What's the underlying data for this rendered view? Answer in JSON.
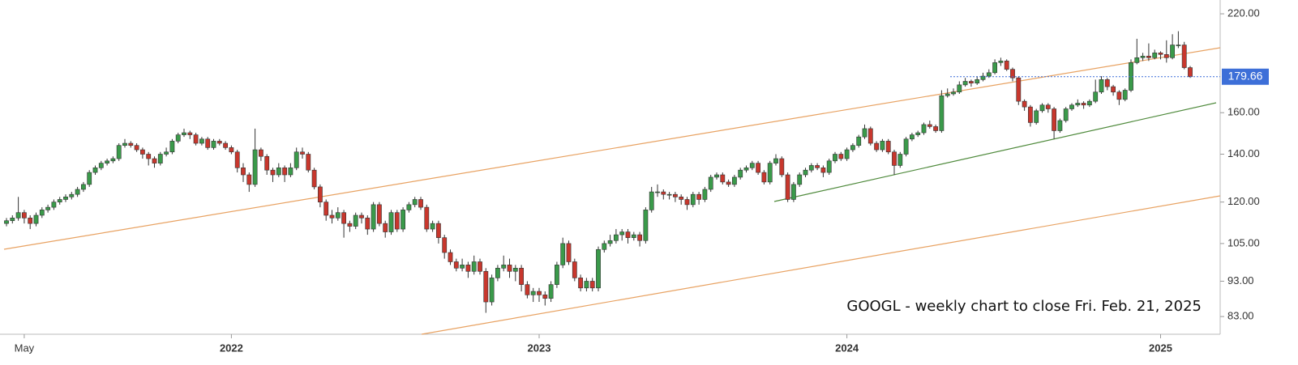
{
  "chart_data": {
    "type": "candlestick",
    "annotation": "GOOGL - weekly chart to close Fri. Feb. 21, 2025",
    "log_y": true,
    "y_axis_side": "right",
    "up_color": "#3a9a4a",
    "down_color": "#c8372d",
    "last_price": 179.66,
    "last_price_color": "#3d6fd8",
    "ylim": [
      78.4,
      230
    ],
    "yticks": [
      {
        "value": 220,
        "label": "220.00"
      },
      {
        "value": 160,
        "label": "160.00"
      },
      {
        "value": 140,
        "label": "140.00"
      },
      {
        "value": 120,
        "label": "120.00"
      },
      {
        "value": 105,
        "label": "105.00"
      },
      {
        "value": 93,
        "label": "93.00"
      },
      {
        "value": 83,
        "label": "83.00"
      }
    ],
    "categories": [
      null,
      null,
      null,
      "May",
      null,
      null,
      null,
      null,
      null,
      null,
      null,
      null,
      null,
      null,
      null,
      null,
      null,
      null,
      null,
      null,
      null,
      null,
      null,
      null,
      null,
      null,
      null,
      null,
      null,
      null,
      null,
      null,
      null,
      null,
      null,
      null,
      null,
      null,
      "2022",
      null,
      null,
      null,
      null,
      null,
      null,
      null,
      null,
      null,
      null,
      null,
      null,
      null,
      null,
      null,
      null,
      null,
      null,
      null,
      null,
      null,
      null,
      null,
      null,
      null,
      null,
      null,
      null,
      null,
      null,
      null,
      null,
      null,
      null,
      null,
      null,
      null,
      null,
      null,
      null,
      null,
      null,
      null,
      null,
      null,
      null,
      null,
      null,
      null,
      null,
      null,
      "2023",
      null,
      null,
      null,
      null,
      null,
      null,
      null,
      null,
      null,
      null,
      null,
      null,
      null,
      null,
      null,
      null,
      null,
      null,
      null,
      null,
      null,
      null,
      null,
      null,
      null,
      null,
      null,
      null,
      null,
      null,
      null,
      null,
      null,
      null,
      null,
      null,
      null,
      null,
      null,
      null,
      null,
      null,
      null,
      null,
      null,
      null,
      null,
      null,
      null,
      null,
      null,
      "2024",
      null,
      null,
      null,
      null,
      null,
      null,
      null,
      null,
      null,
      null,
      null,
      null,
      null,
      null,
      null,
      null,
      null,
      null,
      null,
      null,
      null,
      null,
      null,
      null,
      null,
      null,
      null,
      null,
      null,
      null,
      null,
      null,
      null,
      null,
      null,
      null,
      null,
      null,
      null,
      null,
      null,
      null,
      null,
      null,
      null,
      null,
      null,
      null,
      null,
      null,
      null,
      null,
      "2025",
      null,
      null,
      null,
      null,
      null
    ],
    "open": [
      112,
      113,
      114,
      116,
      114,
      112,
      115,
      117,
      118,
      120,
      121,
      122,
      123,
      125,
      127,
      132,
      134,
      136,
      137,
      138,
      144,
      145,
      144,
      142,
      140,
      138,
      136,
      140,
      141,
      146,
      149,
      150,
      149,
      145,
      147,
      143,
      146,
      145,
      143,
      141,
      134,
      131,
      127,
      142,
      139,
      133,
      131,
      134,
      131,
      134,
      141,
      140,
      133,
      126,
      120,
      115,
      114,
      116,
      112,
      111,
      115,
      114,
      110,
      119,
      112,
      109,
      116,
      110,
      117,
      119,
      121,
      118,
      110,
      112,
      107,
      102,
      99,
      97,
      98,
      96,
      99,
      96,
      87,
      94,
      97,
      98,
      96,
      97,
      92,
      89,
      90,
      89,
      88,
      92,
      98,
      105,
      99,
      94,
      91,
      93,
      91,
      103,
      105,
      106,
      108,
      109,
      107,
      108,
      106,
      117,
      124,
      124,
      123,
      123,
      122,
      121,
      119,
      123,
      121,
      125,
      130,
      131,
      128,
      127,
      130,
      133,
      134,
      136,
      132,
      128,
      136,
      138,
      131,
      121,
      127,
      131,
      133,
      135,
      134,
      132,
      137,
      140,
      138,
      142,
      144,
      148,
      152,
      145,
      142,
      146,
      141,
      135,
      140,
      147,
      149,
      150,
      154,
      153,
      151,
      169,
      170,
      171,
      175,
      177,
      176,
      178,
      180,
      182,
      188,
      189,
      184,
      179,
      166,
      163,
      155,
      161,
      164,
      162,
      151,
      156,
      162,
      164,
      165,
      164,
      166,
      171,
      178,
      174,
      171,
      167,
      172,
      188,
      191,
      192,
      191,
      194,
      193,
      191,
      199,
      199,
      185
    ],
    "high": [
      114,
      115,
      122,
      117,
      115,
      116,
      118,
      119,
      121,
      122,
      123,
      124,
      126,
      128,
      133,
      135,
      137,
      138,
      139,
      145,
      147,
      146,
      145,
      143,
      141,
      139,
      141,
      143,
      147,
      150,
      152,
      151,
      150,
      148,
      148,
      147,
      147,
      146,
      144,
      142,
      136,
      132,
      152,
      143,
      140,
      134,
      136,
      135,
      136,
      143,
      143,
      141,
      134,
      127,
      121,
      117,
      118,
      117,
      113,
      116,
      116,
      115,
      120,
      120,
      113,
      117,
      117,
      118,
      120,
      122,
      122,
      119,
      113,
      113,
      108,
      103,
      100,
      100,
      99,
      101,
      100,
      97,
      95,
      98,
      101,
      100,
      98,
      98,
      93,
      91,
      91,
      90,
      93,
      99,
      107,
      106,
      100,
      95,
      94,
      94,
      104,
      106,
      108,
      110,
      110,
      110,
      109,
      109,
      118,
      126,
      127,
      125,
      124,
      124,
      123,
      122,
      124,
      124,
      126,
      131,
      132,
      132,
      129,
      131,
      134,
      135,
      137,
      137,
      133,
      137,
      140,
      139,
      132,
      128,
      132,
      134,
      136,
      136,
      135,
      138,
      141,
      141,
      143,
      145,
      149,
      154,
      153,
      146,
      147,
      147,
      142,
      141,
      148,
      150,
      151,
      155,
      156,
      154,
      172,
      173,
      173,
      177,
      179,
      178,
      180,
      182,
      184,
      190,
      191,
      190,
      185,
      180,
      167,
      164,
      162,
      165,
      165,
      163,
      157,
      163,
      165,
      167,
      166,
      167,
      178,
      180,
      179,
      175,
      172,
      173,
      190,
      203,
      194,
      200,
      196,
      195,
      202,
      206,
      208,
      201,
      186
    ],
    "low": [
      111,
      112,
      113,
      112,
      110,
      111,
      114,
      116,
      117,
      119,
      120,
      121,
      122,
      124,
      126,
      131,
      133,
      135,
      136,
      137,
      143,
      143,
      141,
      138,
      135,
      134,
      135,
      139,
      140,
      145,
      148,
      147,
      144,
      144,
      142,
      142,
      144,
      142,
      140,
      132,
      128,
      124,
      126,
      137,
      131,
      128,
      130,
      128,
      130,
      133,
      138,
      132,
      125,
      118,
      113,
      112,
      113,
      107,
      109,
      110,
      112,
      108,
      109,
      111,
      107,
      108,
      109,
      109,
      116,
      118,
      117,
      109,
      109,
      105,
      100,
      98,
      96,
      96,
      94,
      95,
      95,
      84,
      86,
      93,
      96,
      94,
      93,
      90,
      88,
      87,
      87,
      86,
      87,
      91,
      97,
      98,
      93,
      90,
      90,
      90,
      90,
      102,
      104,
      105,
      106,
      105,
      106,
      104,
      105,
      116,
      122,
      121,
      121,
      120,
      119,
      117,
      118,
      119,
      120,
      124,
      129,
      127,
      126,
      126,
      129,
      132,
      133,
      131,
      127,
      127,
      135,
      130,
      120,
      120,
      126,
      130,
      132,
      133,
      130,
      131,
      136,
      137,
      137,
      141,
      143,
      147,
      144,
      141,
      141,
      140,
      131,
      134,
      139,
      146,
      148,
      149,
      152,
      150,
      150,
      168,
      169,
      170,
      174,
      174,
      175,
      177,
      179,
      181,
      186,
      183,
      177,
      164,
      161,
      153,
      154,
      160,
      160,
      147,
      150,
      155,
      161,
      163,
      162,
      163,
      165,
      170,
      172,
      169,
      164,
      166,
      171,
      187,
      189,
      189,
      190,
      190,
      188,
      190,
      197,
      184,
      179
    ],
    "close": [
      113,
      114,
      116,
      114,
      112,
      115,
      117,
      118,
      120,
      121,
      122,
      123,
      125,
      127,
      132,
      134,
      136,
      137,
      138,
      144,
      145,
      144,
      142,
      140,
      138,
      136,
      140,
      141,
      146,
      149,
      150,
      149,
      145,
      147,
      143,
      146,
      145,
      143,
      141,
      134,
      131,
      127,
      142,
      139,
      133,
      131,
      134,
      131,
      134,
      141,
      140,
      133,
      126,
      120,
      115,
      114,
      116,
      112,
      111,
      115,
      114,
      110,
      119,
      112,
      109,
      116,
      110,
      117,
      119,
      121,
      118,
      110,
      112,
      107,
      102,
      99,
      97,
      98,
      96,
      99,
      96,
      87,
      94,
      97,
      98,
      96,
      97,
      92,
      89,
      90,
      89,
      88,
      92,
      98,
      105,
      99,
      94,
      91,
      93,
      91,
      103,
      105,
      106,
      108,
      109,
      107,
      108,
      106,
      117,
      124,
      124,
      123,
      123,
      122,
      121,
      119,
      123,
      121,
      125,
      130,
      131,
      128,
      127,
      130,
      133,
      134,
      136,
      132,
      128,
      136,
      138,
      131,
      121,
      127,
      131,
      133,
      135,
      134,
      132,
      137,
      140,
      138,
      142,
      144,
      148,
      152,
      145,
      142,
      146,
      141,
      135,
      140,
      147,
      149,
      150,
      154,
      153,
      151,
      169,
      170,
      171,
      175,
      177,
      176,
      178,
      180,
      182,
      188,
      189,
      184,
      179,
      166,
      163,
      155,
      161,
      164,
      162,
      151,
      156,
      162,
      164,
      165,
      164,
      166,
      171,
      178,
      174,
      171,
      167,
      172,
      188,
      191,
      192,
      191,
      194,
      193,
      191,
      199,
      199,
      185,
      179.66
    ]
  }
}
